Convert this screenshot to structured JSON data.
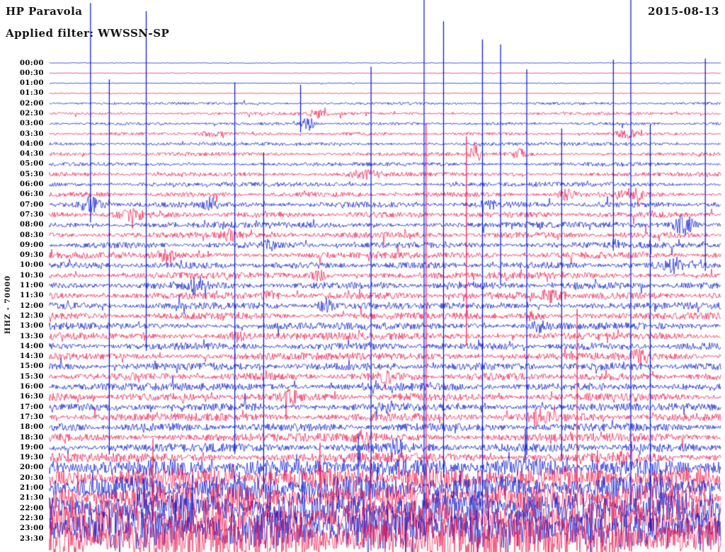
{
  "header": {
    "station": "HP Paravola",
    "date": "2015-08-13",
    "filter_label": "Applied filter: WWSSN-SP"
  },
  "axis": {
    "channel_label": "HHZ - 70000"
  },
  "chart_data": {
    "type": "line",
    "title": "Helicorder day plot, station HP Paravola, channel HHZ, 2015-08-13, filter WWSSN-SP, scale 70000",
    "row_spacing_minutes": 30,
    "legend_position": "none",
    "grid": false,
    "colors": {
      "blue": "#0011cc",
      "red": "#ee1148"
    },
    "rows": [
      {
        "time": "00:00",
        "color": "blue",
        "amp": 0.4
      },
      {
        "time": "00:30",
        "color": "red",
        "amp": 0.4
      },
      {
        "time": "01:00",
        "color": "blue",
        "amp": 0.5
      },
      {
        "time": "01:30",
        "color": "red",
        "amp": 0.5
      },
      {
        "time": "02:00",
        "color": "blue",
        "amp": 1.3
      },
      {
        "time": "02:30",
        "color": "red",
        "amp": 1.5
      },
      {
        "time": "03:00",
        "color": "blue",
        "amp": 1.5
      },
      {
        "time": "03:30",
        "color": "red",
        "amp": 1.6
      },
      {
        "time": "04:00",
        "color": "blue",
        "amp": 1.8
      },
      {
        "time": "04:30",
        "color": "red",
        "amp": 2.0
      },
      {
        "time": "05:00",
        "color": "blue",
        "amp": 2.0
      },
      {
        "time": "05:30",
        "color": "red",
        "amp": 2.2
      },
      {
        "time": "06:00",
        "color": "blue",
        "amp": 2.4
      },
      {
        "time": "06:30",
        "color": "red",
        "amp": 2.6
      },
      {
        "time": "07:00",
        "color": "blue",
        "amp": 3.0
      },
      {
        "time": "07:30",
        "color": "red",
        "amp": 3.0
      },
      {
        "time": "08:00",
        "color": "blue",
        "amp": 3.2
      },
      {
        "time": "08:30",
        "color": "red",
        "amp": 3.2
      },
      {
        "time": "09:00",
        "color": "blue",
        "amp": 3.2
      },
      {
        "time": "09:30",
        "color": "red",
        "amp": 3.4
      },
      {
        "time": "10:00",
        "color": "blue",
        "amp": 3.4
      },
      {
        "time": "10:30",
        "color": "red",
        "amp": 3.4
      },
      {
        "time": "11:00",
        "color": "blue",
        "amp": 3.6
      },
      {
        "time": "11:30",
        "color": "red",
        "amp": 3.6
      },
      {
        "time": "12:00",
        "color": "blue",
        "amp": 3.6
      },
      {
        "time": "12:30",
        "color": "red",
        "amp": 3.6
      },
      {
        "time": "13:00",
        "color": "blue",
        "amp": 3.8
      },
      {
        "time": "13:30",
        "color": "red",
        "amp": 3.8
      },
      {
        "time": "14:00",
        "color": "blue",
        "amp": 3.8
      },
      {
        "time": "14:30",
        "color": "red",
        "amp": 3.8
      },
      {
        "time": "15:00",
        "color": "blue",
        "amp": 4.0
      },
      {
        "time": "15:30",
        "color": "red",
        "amp": 4.0
      },
      {
        "time": "16:00",
        "color": "blue",
        "amp": 4.0
      },
      {
        "time": "16:30",
        "color": "red",
        "amp": 4.0
      },
      {
        "time": "17:00",
        "color": "blue",
        "amp": 4.0
      },
      {
        "time": "17:30",
        "color": "red",
        "amp": 4.2
      },
      {
        "time": "18:00",
        "color": "blue",
        "amp": 4.2
      },
      {
        "time": "18:30",
        "color": "red",
        "amp": 4.4
      },
      {
        "time": "19:00",
        "color": "blue",
        "amp": 4.6
      },
      {
        "time": "19:30",
        "color": "red",
        "amp": 5.0
      },
      {
        "time": "20:00",
        "color": "blue",
        "amp": 9
      },
      {
        "time": "20:30",
        "color": "red",
        "amp": 11
      },
      {
        "time": "21:00",
        "color": "blue",
        "amp": 13
      },
      {
        "time": "21:30",
        "color": "red",
        "amp": 15
      },
      {
        "time": "22:00",
        "color": "blue",
        "amp": 17
      },
      {
        "time": "22:30",
        "color": "red",
        "amp": 19
      },
      {
        "time": "23:00",
        "color": "blue",
        "amp": 21
      },
      {
        "time": "23:30",
        "color": "red",
        "amp": 23
      }
    ],
    "events": [
      {
        "row": "02:30",
        "x": 0.4,
        "amp": 5,
        "width": 0.012
      },
      {
        "row": "03:00",
        "x": 0.385,
        "amp": 9,
        "width": 0.01
      },
      {
        "row": "03:30",
        "x": 0.86,
        "amp": 5,
        "width": 0.015
      },
      {
        "row": "03:30",
        "x": 0.24,
        "amp": 3,
        "width": 0.02
      },
      {
        "row": "04:30",
        "x": 0.635,
        "amp": 15,
        "width": 0.008
      },
      {
        "row": "04:30",
        "x": 0.7,
        "amp": 6,
        "width": 0.012
      },
      {
        "row": "05:30",
        "x": 0.47,
        "amp": 5,
        "width": 0.02
      },
      {
        "row": "06:30",
        "x": 0.77,
        "amp": 7,
        "width": 0.012
      },
      {
        "row": "06:30",
        "x": 0.87,
        "amp": 6,
        "width": 0.02
      },
      {
        "row": "07:00",
        "x": 0.06,
        "amp": 10,
        "width": 0.02
      },
      {
        "row": "07:00",
        "x": 0.24,
        "amp": 7,
        "width": 0.01
      },
      {
        "row": "07:00",
        "x": 0.65,
        "amp": 7,
        "width": 0.012
      },
      {
        "row": "07:30",
        "x": 0.12,
        "amp": 6,
        "width": 0.02
      },
      {
        "row": "08:00",
        "x": 0.945,
        "amp": 13,
        "width": 0.015
      },
      {
        "row": "08:30",
        "x": 0.27,
        "amp": 6,
        "width": 0.012
      },
      {
        "row": "09:00",
        "x": 0.33,
        "amp": 6,
        "width": 0.01
      },
      {
        "row": "09:30",
        "x": 0.175,
        "amp": 9,
        "width": 0.012
      },
      {
        "row": "10:00",
        "x": 0.93,
        "amp": 9,
        "width": 0.015
      },
      {
        "row": "10:30",
        "x": 0.4,
        "amp": 6,
        "width": 0.012
      },
      {
        "row": "11:00",
        "x": 0.22,
        "amp": 10,
        "width": 0.012
      },
      {
        "row": "11:30",
        "x": 0.33,
        "amp": 8,
        "width": 0.01
      },
      {
        "row": "11:30",
        "x": 0.75,
        "amp": 8,
        "width": 0.02
      },
      {
        "row": "12:00",
        "x": 0.41,
        "amp": 9,
        "width": 0.012
      },
      {
        "row": "12:30",
        "x": 0.72,
        "amp": 6,
        "width": 0.015
      },
      {
        "row": "13:00",
        "x": 0.73,
        "amp": 7,
        "width": 0.01
      },
      {
        "row": "13:30",
        "x": 0.28,
        "amp": 6,
        "width": 0.012
      },
      {
        "row": "14:30",
        "x": 0.88,
        "amp": 7,
        "width": 0.015
      },
      {
        "row": "15:30",
        "x": 0.5,
        "amp": 7,
        "width": 0.012
      },
      {
        "row": "16:30",
        "x": 0.36,
        "amp": 9,
        "width": 0.01
      },
      {
        "row": "17:00",
        "x": 0.5,
        "amp": 6,
        "width": 0.015
      },
      {
        "row": "17:30",
        "x": 0.73,
        "amp": 10,
        "width": 0.012
      },
      {
        "row": "18:30",
        "x": 0.47,
        "amp": 7,
        "width": 0.015
      },
      {
        "row": "19:00",
        "x": 0.52,
        "amp": 9,
        "width": 0.012
      },
      {
        "row": "19:30",
        "x": 0.86,
        "amp": 7,
        "width": 0.015
      }
    ],
    "spikes": [
      {
        "row": "07:00",
        "x": 0.061,
        "up": 285,
        "down": 25,
        "color": "blue"
      },
      {
        "row": "12:00",
        "x": 0.089,
        "up": 320,
        "down": 210,
        "color": "blue"
      },
      {
        "row": "13:00",
        "x": 0.144,
        "up": 445,
        "down": 35,
        "color": "blue"
      },
      {
        "row": "16:00",
        "x": 0.276,
        "up": 430,
        "down": 95,
        "color": "blue"
      },
      {
        "row": "17:00",
        "x": 0.319,
        "up": 360,
        "down": 120,
        "color": "blue"
      },
      {
        "row": "03:00",
        "x": 0.374,
        "up": 55,
        "down": 12,
        "color": "blue"
      },
      {
        "row": "14:00",
        "x": 0.479,
        "up": 395,
        "down": 200,
        "color": "blue"
      },
      {
        "row": "20:00",
        "x": 0.558,
        "up": 665,
        "down": 95,
        "color": "blue"
      },
      {
        "row": "18:00",
        "x": 0.561,
        "up": 430,
        "down": 150,
        "color": "red"
      },
      {
        "row": "10:00",
        "x": 0.587,
        "up": 345,
        "down": 300,
        "color": "blue"
      },
      {
        "row": "04:30",
        "x": 0.621,
        "up": 25,
        "down": 270,
        "color": "red"
      },
      {
        "row": "13:00",
        "x": 0.645,
        "up": 405,
        "down": 255,
        "color": "blue"
      },
      {
        "row": "08:00",
        "x": 0.672,
        "up": 255,
        "down": 85,
        "color": "blue"
      },
      {
        "row": "15:00",
        "x": 0.711,
        "up": 420,
        "down": 125,
        "color": "blue"
      },
      {
        "row": "16:00",
        "x": 0.763,
        "up": 365,
        "down": 105,
        "color": "blue"
      },
      {
        "row": "19:30",
        "x": 0.786,
        "up": 210,
        "down": 45,
        "color": "red"
      },
      {
        "row": "07:00",
        "x": 0.84,
        "up": 205,
        "down": 65,
        "color": "blue"
      },
      {
        "row": "21:00",
        "x": 0.866,
        "up": 735,
        "down": 35,
        "color": "blue"
      },
      {
        "row": "20:00",
        "x": 0.895,
        "up": 485,
        "down": 95,
        "color": "blue"
      },
      {
        "row": "08:00",
        "x": 0.977,
        "up": 235,
        "down": 65,
        "color": "blue"
      }
    ]
  }
}
